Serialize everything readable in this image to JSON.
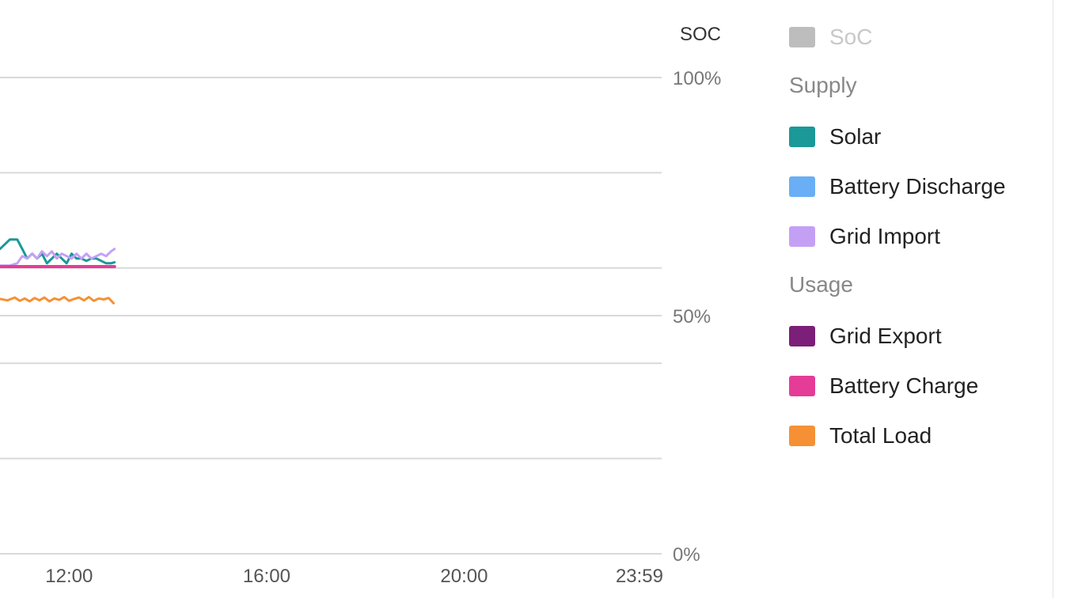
{
  "chart_data": {
    "type": "line",
    "y2_axis": {
      "title": "SOC",
      "range": [
        0,
        100
      ],
      "ticks": [
        {
          "value": 100,
          "label": "100%"
        },
        {
          "value": 50,
          "label": "50%"
        },
        {
          "value": 0,
          "label": "0%"
        }
      ],
      "grid_values": [
        100,
        80,
        60,
        50,
        40,
        20,
        0
      ]
    },
    "x_axis": {
      "range_hours": [
        10.6,
        24
      ],
      "ticks": [
        {
          "hour": 12,
          "label": "12:00"
        },
        {
          "hour": 16,
          "label": "16:00"
        },
        {
          "hour": 20,
          "label": "20:00"
        },
        {
          "hour": 23.983,
          "label": "23:59"
        }
      ]
    },
    "grid": true,
    "legend_position": "right",
    "series": [
      {
        "name": "SoC",
        "color": "#bdbdbd",
        "enabled": false,
        "values": []
      },
      {
        "name": "Solar",
        "color": "#1b9898",
        "group": "Supply",
        "x": [
          10.6,
          10.8,
          10.95,
          11.05,
          11.15,
          11.25,
          11.35,
          11.45,
          11.55,
          11.65,
          11.75,
          11.85,
          11.95,
          12.05,
          12.15,
          12.25,
          12.35,
          12.45,
          12.55,
          12.65,
          12.75,
          12.85,
          12.92
        ],
        "values": [
          64,
          66,
          66,
          64,
          62,
          63,
          62,
          63,
          61,
          62,
          63,
          62,
          61,
          63,
          62,
          62,
          61.5,
          62,
          62,
          61.5,
          61,
          61,
          61.2
        ]
      },
      {
        "name": "Battery Discharge",
        "color": "#6aaff5",
        "group": "Supply",
        "x": [],
        "values": []
      },
      {
        "name": "Grid Import",
        "color": "#c4a0f5",
        "group": "Supply",
        "x": [
          10.6,
          10.8,
          10.95,
          11.05,
          11.15,
          11.25,
          11.35,
          11.45,
          11.55,
          11.65,
          11.75,
          11.85,
          11.95,
          12.05,
          12.15,
          12.25,
          12.35,
          12.45,
          12.55,
          12.65,
          12.75,
          12.85,
          12.92
        ],
        "values": [
          60.5,
          60.5,
          61,
          62.5,
          62,
          63,
          62,
          63.5,
          62.5,
          63.5,
          62,
          63,
          62.5,
          62,
          63,
          62,
          63,
          62,
          62.5,
          63,
          62.5,
          63.5,
          64
        ]
      },
      {
        "name": "Grid Export",
        "color": "#7b1f78",
        "group": "Usage",
        "x": [],
        "values": []
      },
      {
        "name": "Battery Charge",
        "color": "#e43c97",
        "group": "Usage",
        "x": [
          10.6,
          12.92
        ],
        "values": [
          60.3,
          60.3
        ]
      },
      {
        "name": "Total Load",
        "color": "#f59134",
        "group": "Usage",
        "x": [
          10.6,
          10.75,
          10.9,
          11.0,
          11.1,
          11.2,
          11.3,
          11.4,
          11.5,
          11.6,
          11.7,
          11.8,
          11.9,
          12.0,
          12.1,
          12.2,
          12.3,
          12.4,
          12.5,
          12.6,
          12.7,
          12.8,
          12.9
        ],
        "values": [
          53.5,
          53.2,
          53.8,
          53.1,
          53.6,
          53.0,
          53.7,
          53.2,
          53.8,
          53.0,
          53.6,
          53.3,
          53.9,
          53.1,
          53.5,
          53.8,
          53.2,
          53.9,
          53.1,
          53.6,
          53.4,
          53.7,
          52.6
        ]
      }
    ],
    "legend_groups": [
      "Supply",
      "Usage"
    ]
  }
}
